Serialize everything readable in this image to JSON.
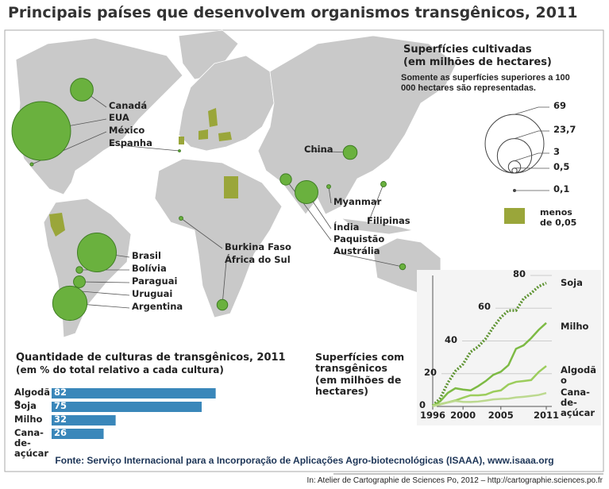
{
  "title": "Principais países que desenvolvem organismos transgênicos, 2011",
  "map": {
    "countries": [
      {
        "name": "Canadá",
        "value": 10.4
      },
      {
        "name": "EUA",
        "value": 69
      },
      {
        "name": "México",
        "value": 0.2
      },
      {
        "name": "Espanha",
        "value": 0.1
      },
      {
        "name": "China",
        "value": 3.9
      },
      {
        "name": "Myanmar",
        "value": 0.3
      },
      {
        "name": "Índia",
        "value": 10.6
      },
      {
        "name": "Paquistão",
        "value": 2.6
      },
      {
        "name": "Austrália",
        "value": 0.7
      },
      {
        "name": "Filipinas",
        "value": 0.6
      },
      {
        "name": "Burkina Faso",
        "value": 0.3
      },
      {
        "name": "África do Sul",
        "value": 2.3
      },
      {
        "name": "Brasil",
        "value": 30.3
      },
      {
        "name": "Bolívia",
        "value": 0.9
      },
      {
        "name": "Paraguai",
        "value": 2.8
      },
      {
        "name": "Uruguai",
        "value": 1.3
      },
      {
        "name": "Argentina",
        "value": 23.7
      }
    ]
  },
  "legend": {
    "title": "Superfícies cultivadas",
    "subtitle": "(em milhões de hectares)",
    "note": "Somente as superfícies superiores a 100 000 hectares são representadas.",
    "sizes": [
      69,
      {
        "value": 23.7,
        "label": "23,7"
      },
      3,
      {
        "value": 0.5,
        "label": "0,5"
      },
      {
        "value": 0.1,
        "label": "0,1"
      }
    ],
    "small_label": "menos de 0,05"
  },
  "chart_data": [
    {
      "type": "bar",
      "orientation": "horizontal",
      "title": "Quantidade de culturas de transgênicos, 2011",
      "subtitle": "(em % do total relativo a cada cultura)",
      "categories": [
        "Algodão",
        "Soja",
        "Milho",
        "Cana-de-açúcar"
      ],
      "values": [
        82,
        75,
        32,
        26
      ],
      "color": "#3a87ba"
    },
    {
      "type": "line",
      "title": "Superfícies com transgênicos (em milhões de hectares)",
      "x": [
        1996,
        1997,
        1998,
        1999,
        2000,
        2001,
        2002,
        2003,
        2004,
        2005,
        2006,
        2007,
        2008,
        2009,
        2010,
        2011
      ],
      "xlim": [
        1996,
        2011
      ],
      "xticks": [
        1996,
        2000,
        2005,
        2011
      ],
      "ylim": [
        0,
        80
      ],
      "yticks": [
        0,
        20,
        40,
        60,
        80
      ],
      "series": [
        {
          "name": "Soja",
          "color": "#5f9433",
          "values": [
            0.5,
            5,
            14.5,
            21.6,
            25.8,
            33.3,
            36.5,
            41.4,
            48.4,
            54.4,
            58.6,
            58.6,
            65.8,
            69.2,
            73.3,
            75.4
          ]
        },
        {
          "name": "Milho",
          "color": "#7dba44",
          "values": [
            0.3,
            3.2,
            8.3,
            11.1,
            10.3,
            9.8,
            12.4,
            15.5,
            19.3,
            21.2,
            25.2,
            35.2,
            37.3,
            41.7,
            46.8,
            51
          ]
        },
        {
          "name": "Algodão",
          "color": "#9ccd5c",
          "values": [
            0.8,
            1.4,
            2.5,
            3.7,
            5.3,
            6.8,
            6.8,
            7.2,
            9,
            9.8,
            13.4,
            15,
            15.5,
            16.1,
            21,
            24.7
          ]
        },
        {
          "name": "Cana-de-açúcar",
          "color": "#bcd98f",
          "values": [
            0.1,
            1.2,
            2.4,
            3.4,
            2.8,
            2.7,
            3,
            3.6,
            4.3,
            4.6,
            4.8,
            5.5,
            5.9,
            6.4,
            7,
            8.2
          ]
        }
      ]
    }
  ],
  "source": "Fonte: Serviço Internacional para a Incorporação de Aplicações Agro-biotecnológicas (ISAAA), www.isaaa.org",
  "credit": "In: Atelier de Cartographie de Sciences Po, 2012 – http://cartographie.sciences.po.fr"
}
